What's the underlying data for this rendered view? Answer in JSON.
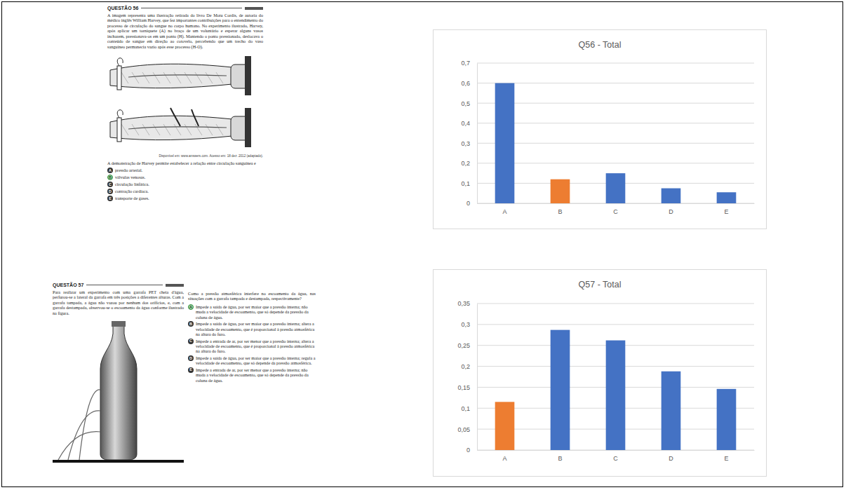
{
  "chart_data": [
    {
      "type": "bar",
      "title": "Q56 - Total",
      "categories": [
        "A",
        "B",
        "C",
        "D",
        "E"
      ],
      "values": [
        0.6,
        0.12,
        0.15,
        0.075,
        0.055
      ],
      "colors": [
        "#4472c4",
        "#ed7d31",
        "#4472c4",
        "#4472c4",
        "#4472c4"
      ],
      "ylim": [
        0,
        0.7
      ],
      "yticks": [
        0,
        {
          "value": 0.1,
          "label": "0,1"
        },
        {
          "value": 0.2,
          "label": "0,2"
        },
        {
          "value": 0.3,
          "label": "0,3"
        },
        {
          "value": 0.4,
          "label": "0,4"
        },
        {
          "value": 0.5,
          "label": "0,5"
        },
        {
          "value": 0.6,
          "label": "0,6"
        },
        {
          "value": 0.7,
          "label": "0,7"
        }
      ],
      "grid": true
    },
    {
      "type": "bar",
      "title": "Q57 - Total",
      "categories": [
        "A",
        "B",
        "C",
        "D",
        "E"
      ],
      "values": [
        0.115,
        0.287,
        0.262,
        0.188,
        0.146
      ],
      "colors": [
        "#ed7d31",
        "#4472c4",
        "#4472c4",
        "#4472c4",
        "#4472c4"
      ],
      "ylim": [
        0,
        0.35
      ],
      "yticks": [
        0,
        {
          "value": 0.05,
          "label": "0,05"
        },
        {
          "value": 0.1,
          "label": "0,1"
        },
        {
          "value": 0.15,
          "label": "0,15"
        },
        {
          "value": 0.2,
          "label": "0,2"
        },
        {
          "value": 0.25,
          "label": "0,25"
        },
        {
          "value": 0.3,
          "label": "0,3"
        },
        {
          "value": 0.35,
          "label": "0,35"
        }
      ],
      "grid": true
    }
  ],
  "questions": [
    {
      "header": "QUESTÃO 56",
      "stem": "A imagem representa uma ilustração retirada do livro De Motu Cordis, de autoria do médico inglês William Harvey, que fez importantes contribuições para o entendimento do processo de circulação do sangue no corpo humano. No experimento ilustrado, Harvey, após aplicar um torniquete (A) no braço de um voluntário e esperar alguns vasos incharem, pressionava-os em um ponto (H). Mantendo o ponto pressionado, deslocava o conteúdo de sangue em direção ao cotovelo, percebendo que um trecho do vaso sanguíneo permanecia vazio após esse processo (H-O).",
      "caption": "Disponível em: www.answers.com. Acesso em: 18 dez. 2012 (adaptado).",
      "prompt": "A demonstração de Harvey permite estabelecer a relação entre circulação sanguínea e",
      "options": [
        {
          "letter": "A",
          "text": "pressão arterial."
        },
        {
          "letter": "B",
          "text": "válvulas venosas."
        },
        {
          "letter": "C",
          "text": "circulação linfática."
        },
        {
          "letter": "D",
          "text": "contração cardíaca."
        },
        {
          "letter": "E",
          "text": "transporte de gases."
        }
      ],
      "answer": "B"
    },
    {
      "header": "QUESTÃO 57",
      "stem": "Para realizar um experimento com uma garrafa PET cheia d'água, perfurou-se a lateral da garrafa em três posições a diferentes alturas. Com a garrafa tampada, a água não vazou por nenhum dos orifícios, e, com a garrafa destampada, observou-se o escoamento da água conforme ilustrado na figura.",
      "prompt": "Como a pressão atmosférica interfere no escoamento da água, nas situações com a garrafa tampada e destampada, respectivamente?",
      "options": [
        {
          "letter": "A",
          "text": "Impede a saída de água, por ser maior que a pressão interna; não muda a velocidade de escoamento, que só depende da pressão da coluna de água."
        },
        {
          "letter": "B",
          "text": "Impede a saída de água, por ser maior que a pressão interna; altera a velocidade de escoamento, que é proporcional à pressão atmosférica na altura do furo."
        },
        {
          "letter": "C",
          "text": "Impede a entrada de ar, por ser menor que a pressão interna; altera a velocidade de escoamento, que é proporcional à pressão atmosférica na altura do furo."
        },
        {
          "letter": "D",
          "text": "Impede a saída de água, por ser maior que a pressão interna; regula a velocidade de escoamento, que só depende da pressão atmosférica."
        },
        {
          "letter": "E",
          "text": "Impede a entrada de ar, por ser menor que a pressão interna; não muda a velocidade de escoamento, que só depende da pressão da coluna de água."
        }
      ],
      "answer": "A"
    }
  ]
}
